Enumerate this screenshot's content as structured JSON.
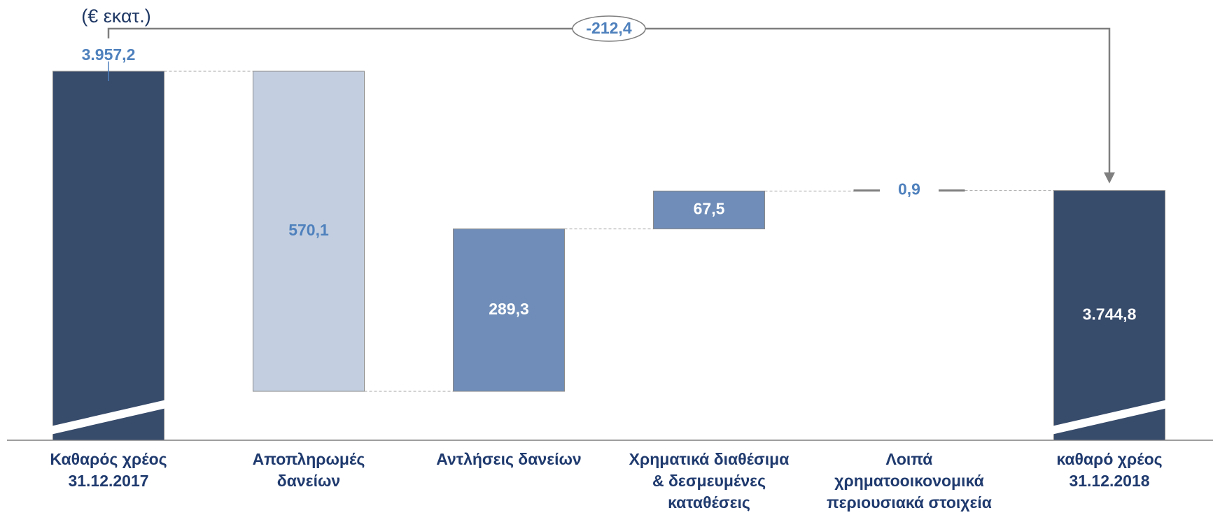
{
  "chart_data": {
    "type": "waterfall",
    "unit_label": "(€ εκατ.)",
    "total_change": {
      "value": -212.4,
      "label": "-212,4"
    },
    "categories": [
      "Καθαρός χρέος\n31.12.2017",
      "Αποπληρωμές\nδανείων",
      "Αντλήσεις δανείων",
      "Χρηματικά διαθέσιμα\n& δεσμευμένες\nκαταθέσεις",
      "Λοιπά\nχρηματοοικονομικά\nπεριουσιακά στοιχεία",
      "καθαρό χρέος\n31.12.2018"
    ],
    "values": [
      3957.2,
      570.1,
      289.3,
      67.5,
      0.9,
      3744.8
    ],
    "value_labels": [
      "3.957,2",
      "570,1",
      "289,3",
      "67,5",
      "0,9",
      "3.744,8"
    ],
    "measures": [
      "total",
      "decrease",
      "increase",
      "increase",
      "increase",
      "total"
    ],
    "colors": [
      "#374b6b",
      "#c3cfe0",
      "#6f8db8",
      "#6f8db8",
      "#7f7f7f",
      "#374b6b"
    ],
    "label_colors": [
      "#4f81bd",
      "#4f81bd",
      "#ffffff",
      "#ffffff",
      "#4f81bd",
      "#ffffff"
    ]
  }
}
